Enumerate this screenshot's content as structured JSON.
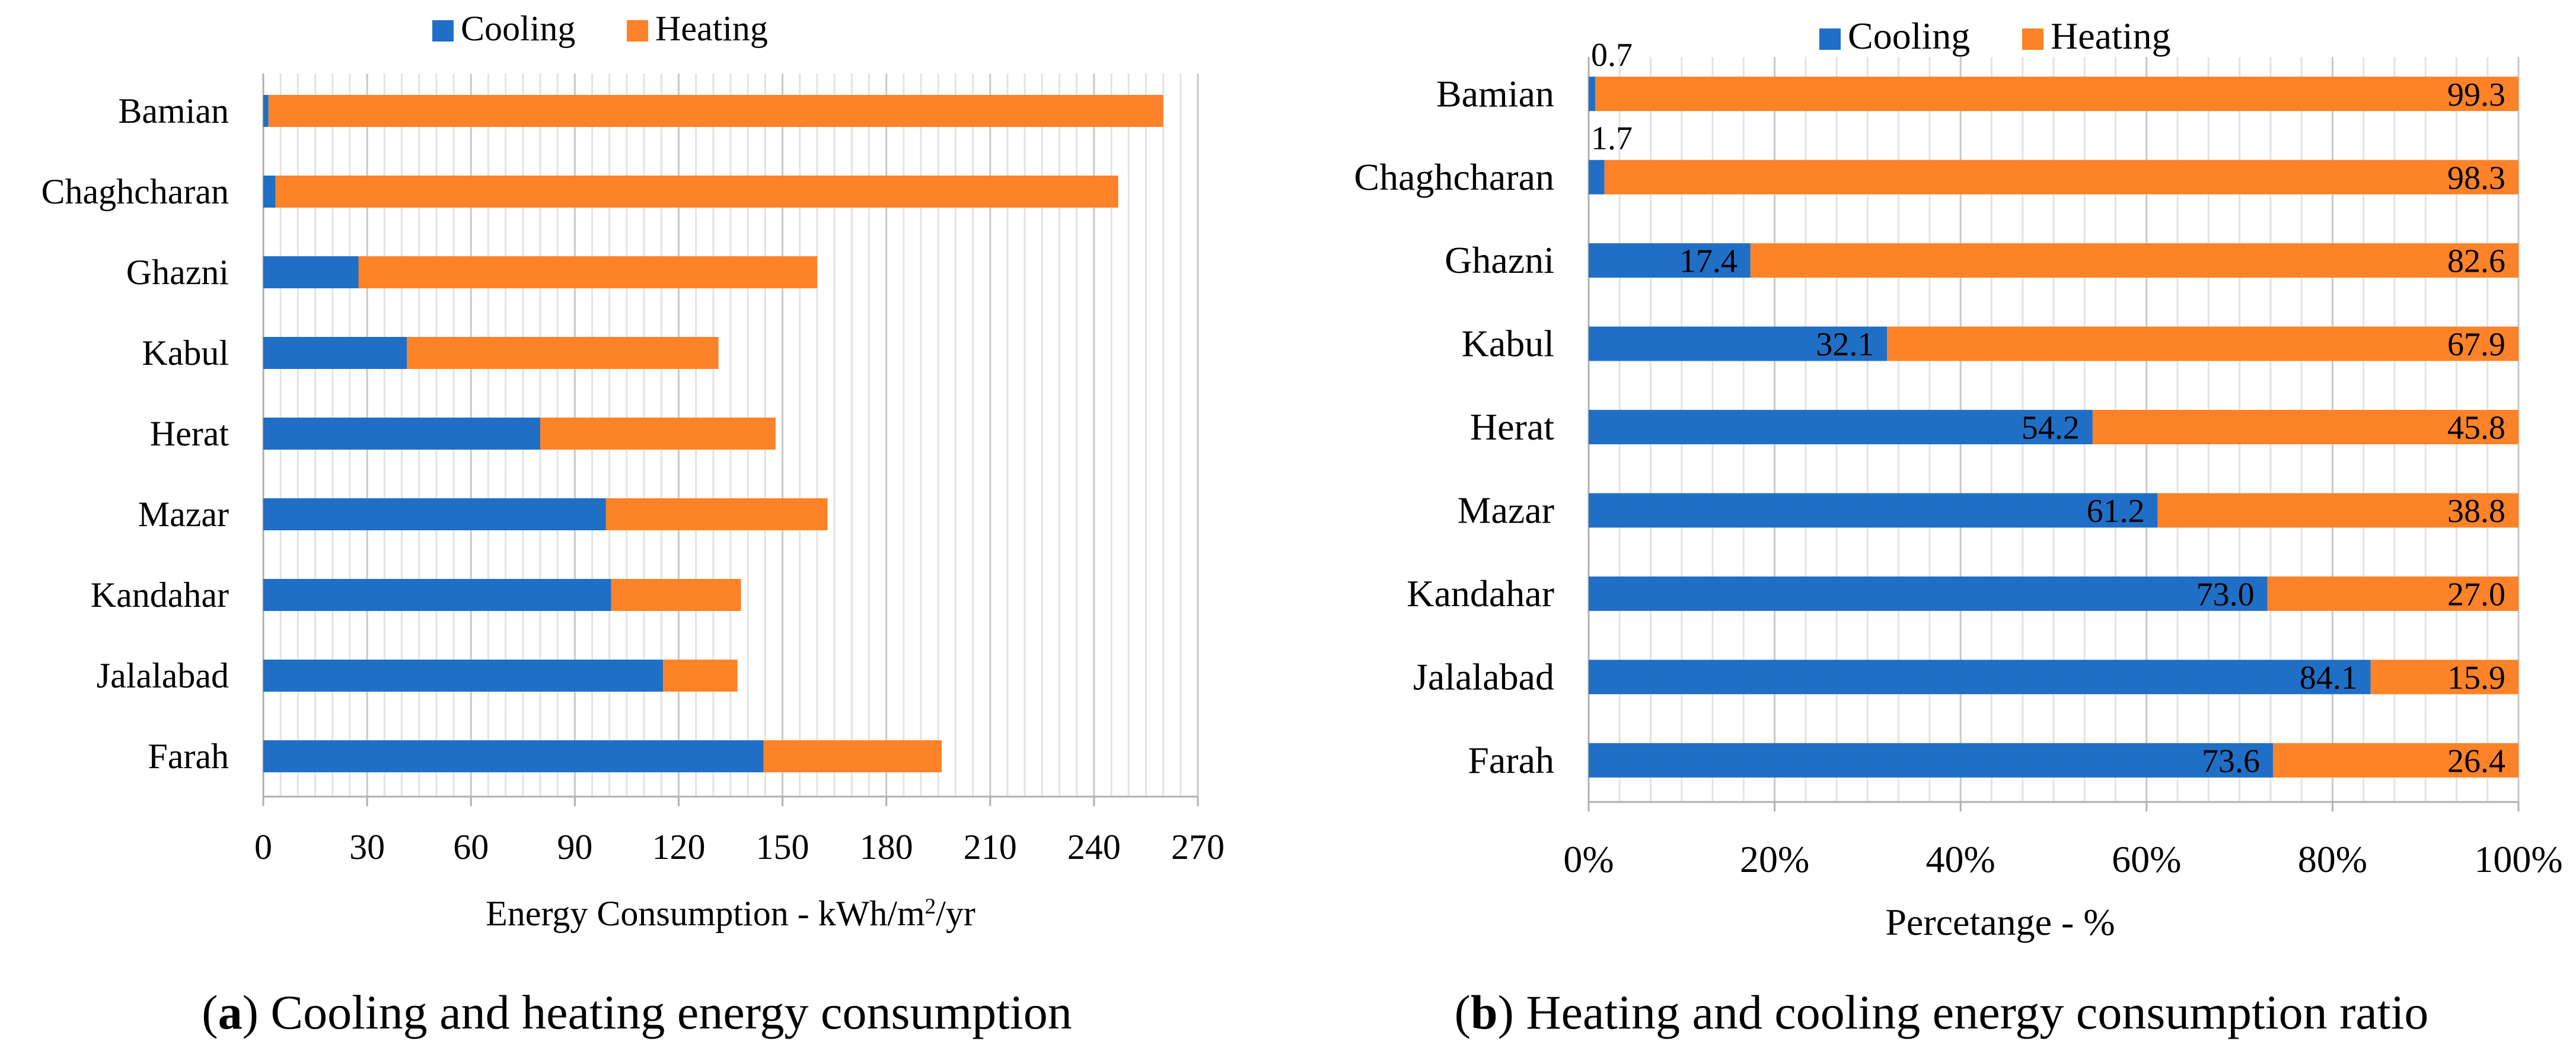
{
  "chart_data": [
    {
      "type": "bar",
      "orientation": "horizontal",
      "stacked": true,
      "title": "",
      "categories": [
        "Bamian",
        "Chaghcharan",
        "Ghazni",
        "Kabul",
        "Herat",
        "Mazar",
        "Kandahar",
        "Jalalabad",
        "Farah"
      ],
      "series": [
        {
          "name": "Cooling",
          "color": "#1f6fc6",
          "values": [
            1.5,
            3.5,
            27.5,
            41.5,
            80,
            99,
            100.5,
            115.5,
            144.5
          ]
        },
        {
          "name": "Heating",
          "color": "#fd8228",
          "values": [
            258.5,
            243.5,
            132.5,
            90,
            68,
            64,
            37.5,
            21.5,
            51.5
          ]
        }
      ],
      "xlabel": "Energy Consumption - kWh/m",
      "xlabel_sup": "2",
      "xlabel_suffix": "/yr",
      "ylabel": "",
      "xlim": [
        0,
        270
      ],
      "xticks": [
        "0",
        "30",
        "60",
        "90",
        "120",
        "150",
        "180",
        "210",
        "240",
        "270"
      ],
      "grid": true,
      "legend": "top-center"
    },
    {
      "type": "bar",
      "orientation": "horizontal",
      "stacked": true,
      "normalized": true,
      "title": "",
      "categories": [
        "Bamian",
        "Chaghcharan",
        "Ghazni",
        "Kabul",
        "Herat",
        "Mazar",
        "Kandahar",
        "Jalalabad",
        "Farah"
      ],
      "series": [
        {
          "name": "Cooling",
          "color": "#1f6fc6",
          "values": [
            0.7,
            1.7,
            17.4,
            32.1,
            54.2,
            61.2,
            73.0,
            84.1,
            73.6
          ],
          "labels": [
            "0.7",
            "1.7",
            "17.4",
            "32.1",
            "54.2",
            "61.2",
            "73.0",
            "84.1",
            "73.6"
          ]
        },
        {
          "name": "Heating",
          "color": "#fd8228",
          "values": [
            99.3,
            98.3,
            82.6,
            67.9,
            45.8,
            38.8,
            27.0,
            15.9,
            26.4
          ],
          "labels": [
            "99.3",
            "98.3",
            "82.6",
            "67.9",
            "45.8",
            "38.8",
            "27.0",
            "15.9",
            "26.4"
          ]
        }
      ],
      "xlabel": "Percetange - %",
      "ylabel": "",
      "xlim": [
        0,
        100
      ],
      "xticks": [
        "0%",
        "20%",
        "40%",
        "60%",
        "80%",
        "100%"
      ],
      "grid": true,
      "legend": "top-center"
    }
  ],
  "captions": {
    "a": {
      "letter": "a",
      "text": " Cooling and heating energy consumption"
    },
    "b": {
      "letter": "b",
      "text": " Heating and cooling energy consumption ratio"
    }
  }
}
